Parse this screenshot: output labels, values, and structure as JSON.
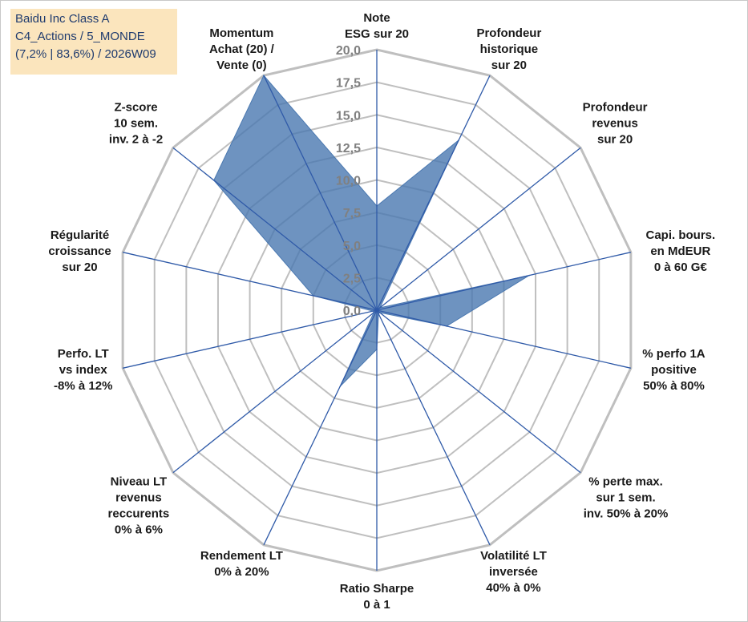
{
  "title_box": {
    "line1": "Baidu Inc Class A",
    "line2": "C4_Actions / 5_MONDE",
    "line3": "(7,2% | 83,6%) / 2026W09"
  },
  "chart_data": {
    "type": "radar",
    "title": "",
    "range": [
      0,
      20
    ],
    "ticks": [
      "0,0",
      "2,5",
      "5,0",
      "7,5",
      "10,0",
      "12,5",
      "15,0",
      "17,5",
      "20,0"
    ],
    "grid": true,
    "fill_color": "#4a78b0",
    "line_color": "#2f5aa8",
    "grid_color": "#bfbfbf",
    "axes": [
      {
        "label": [
          "Note",
          "ESG sur 20"
        ],
        "value": 8.0
      },
      {
        "label": [
          "Profondeur",
          "historique",
          "sur 20"
        ],
        "value": 14.5
      },
      {
        "label": [
          "Profondeur",
          "revenus",
          "sur 20"
        ],
        "value": 0.3
      },
      {
        "label": [
          "Capi. bours.",
          "en MdEUR",
          "0 à 60 G€"
        ],
        "value": 12.0
      },
      {
        "label": [
          "% perfo 1A",
          "positive",
          "50% à 80%"
        ],
        "value": 5.5
      },
      {
        "label": [
          "% perte max.",
          "sur 1 sem.",
          "inv. 50% à 20%"
        ],
        "value": 0.3
      },
      {
        "label": [
          "Volatilité LT",
          "inversée",
          "40% à 0%"
        ],
        "value": 0.3
      },
      {
        "label": [
          "Ratio Sharpe",
          "0 à 1"
        ],
        "value": 3.0
      },
      {
        "label": [
          "Rendement LT",
          "0% à 20%"
        ],
        "value": 6.5
      },
      {
        "label": [
          "Niveau LT",
          "revenus",
          "reccurents",
          "0% à 6%"
        ],
        "value": 0.3
      },
      {
        "label": [
          "Perfo. LT",
          "vs index",
          "-8% à 12%"
        ],
        "value": 0.3
      },
      {
        "label": [
          "Régularité",
          "croissance",
          "sur 20"
        ],
        "value": 5.0
      },
      {
        "label": [
          "Z-score",
          "10 sem.",
          "inv. 2 à -2"
        ],
        "value": 16.0
      },
      {
        "label": [
          "Momentum",
          "Achat (20) /",
          "Vente (0)"
        ],
        "value": 20.0
      }
    ]
  }
}
